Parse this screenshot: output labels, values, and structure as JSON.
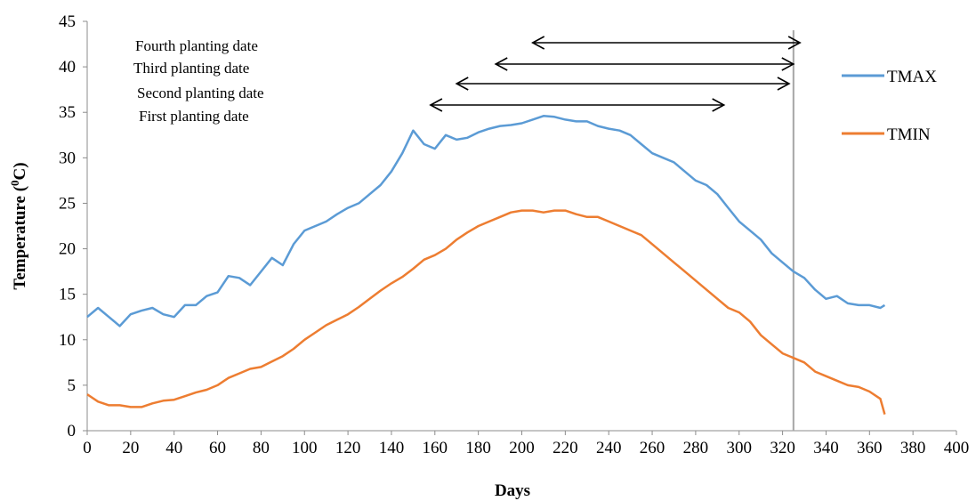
{
  "chart_data": {
    "type": "line",
    "xlabel": "Days",
    "ylabel": "Temperature (",
    "ylabel_sup": "0",
    "ylabel_tail": "C)",
    "xlim": [
      0,
      400
    ],
    "ylim": [
      0,
      45
    ],
    "x_ticks": [
      "0",
      "20",
      "40",
      "60",
      "80",
      "100",
      "120",
      "140",
      "160",
      "180",
      "200",
      "220",
      "240",
      "260",
      "280",
      "300",
      "320",
      "340",
      "360",
      "380",
      "400"
    ],
    "y_ticks": [
      "0",
      "5",
      "10",
      "15",
      "20",
      "25",
      "30",
      "35",
      "40",
      "45"
    ],
    "grid": false,
    "legend_position": "right",
    "series": [
      {
        "name": "TMAX",
        "color": "#5b9bd5",
        "x": [
          0,
          5,
          10,
          15,
          20,
          25,
          30,
          35,
          40,
          45,
          50,
          55,
          60,
          65,
          70,
          75,
          80,
          85,
          90,
          95,
          100,
          105,
          110,
          115,
          120,
          125,
          130,
          135,
          140,
          145,
          150,
          155,
          160,
          165,
          170,
          175,
          180,
          185,
          190,
          195,
          200,
          205,
          210,
          215,
          220,
          225,
          230,
          235,
          240,
          245,
          250,
          255,
          260,
          265,
          270,
          275,
          280,
          285,
          290,
          295,
          300,
          305,
          310,
          315,
          320,
          325,
          330,
          335,
          340,
          345,
          350,
          355,
          360,
          365,
          367
        ],
        "y": [
          12.5,
          13.5,
          12.5,
          11.5,
          12.8,
          13.2,
          13.5,
          12.8,
          12.5,
          13.8,
          13.8,
          14.8,
          15.2,
          17.0,
          16.8,
          16.0,
          17.5,
          19.0,
          18.2,
          20.5,
          22.0,
          22.5,
          23.0,
          23.8,
          24.5,
          25.0,
          26.0,
          27.0,
          28.5,
          30.5,
          33.0,
          31.5,
          31.0,
          32.5,
          32.0,
          32.2,
          32.8,
          33.2,
          33.5,
          33.6,
          33.8,
          34.2,
          34.6,
          34.5,
          34.2,
          34.0,
          34.0,
          33.5,
          33.2,
          33.0,
          32.5,
          31.5,
          30.5,
          30.0,
          29.5,
          28.5,
          27.5,
          27.0,
          26.0,
          24.5,
          23.0,
          22.0,
          21.0,
          19.5,
          18.5,
          17.5,
          16.8,
          15.5,
          14.5,
          14.8,
          14.0,
          13.8,
          13.8,
          13.5,
          13.8
        ]
      },
      {
        "name": "TMIN",
        "color": "#ed7d31",
        "x": [
          0,
          5,
          10,
          15,
          20,
          25,
          30,
          35,
          40,
          45,
          50,
          55,
          60,
          65,
          70,
          75,
          80,
          85,
          90,
          95,
          100,
          105,
          110,
          115,
          120,
          125,
          130,
          135,
          140,
          145,
          150,
          155,
          160,
          165,
          170,
          175,
          180,
          185,
          190,
          195,
          200,
          205,
          210,
          215,
          220,
          225,
          230,
          235,
          240,
          245,
          250,
          255,
          260,
          265,
          270,
          275,
          280,
          285,
          290,
          295,
          300,
          305,
          310,
          315,
          320,
          325,
          330,
          335,
          340,
          345,
          350,
          355,
          360,
          365,
          367
        ],
        "y": [
          4.0,
          3.2,
          2.8,
          2.8,
          2.6,
          2.6,
          3.0,
          3.3,
          3.4,
          3.8,
          4.2,
          4.5,
          5.0,
          5.8,
          6.3,
          6.8,
          7.0,
          7.6,
          8.2,
          9.0,
          10.0,
          10.8,
          11.6,
          12.2,
          12.8,
          13.6,
          14.5,
          15.4,
          16.2,
          16.9,
          17.8,
          18.8,
          19.3,
          20.0,
          21.0,
          21.8,
          22.5,
          23.0,
          23.5,
          24.0,
          24.2,
          24.2,
          24.0,
          24.2,
          24.2,
          23.8,
          23.5,
          23.5,
          23.0,
          22.5,
          22.0,
          21.5,
          20.5,
          19.5,
          18.5,
          17.5,
          16.5,
          15.5,
          14.5,
          13.5,
          13.0,
          12.0,
          10.5,
          9.5,
          8.5,
          8.0,
          7.5,
          6.5,
          6.0,
          5.5,
          5.0,
          4.8,
          4.3,
          3.5,
          1.8
        ]
      }
    ],
    "vertical_line": {
      "x": 325,
      "color": "#a6a6a6"
    },
    "annotations": [
      {
        "label": "Fourth planting date",
        "start": 205,
        "end": 328
      },
      {
        "label": "Third planting date",
        "start": 188,
        "end": 325
      },
      {
        "label": "Second planting date",
        "start": 170,
        "end": 323
      },
      {
        "label": "First planting date",
        "start": 158,
        "end": 293
      }
    ]
  }
}
